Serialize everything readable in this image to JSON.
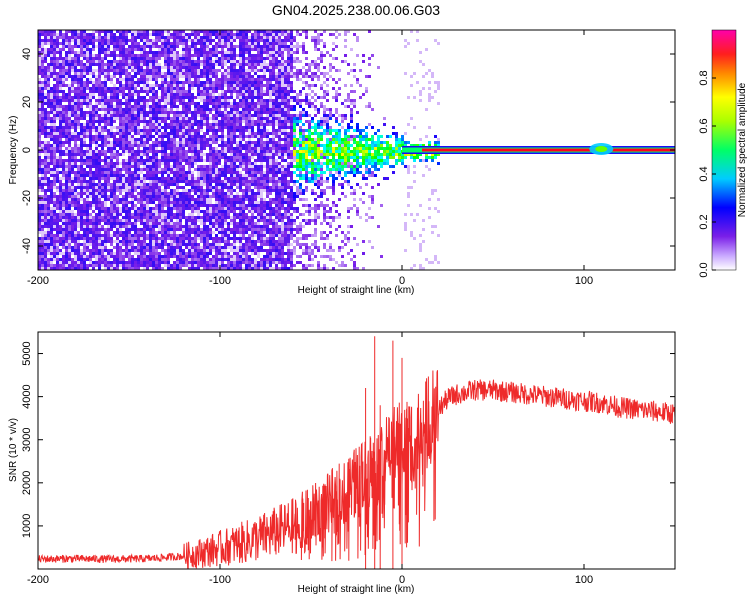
{
  "title": "GN04.2025.238.00.06.G03",
  "colors": {
    "snr_line": "#ee2a2a",
    "low_amp": "#7a1fe8",
    "ridge": "#ff1e1e"
  },
  "chart_data": [
    {
      "type": "heatmap",
      "name": "spectrogram",
      "xlabel": "Height of straight line (km)",
      "ylabel": "Frequency (Hz)",
      "xlim": [
        -200,
        150
      ],
      "ylim": [
        -50,
        50
      ],
      "xticks": [
        "-200",
        "-100",
        "0",
        "100"
      ],
      "xtick_values": [
        -200,
        -100,
        0,
        100
      ],
      "yticks": [
        "-40",
        "-20",
        "0",
        "20",
        "40"
      ],
      "ytick_values": [
        -40,
        -20,
        0,
        20,
        40
      ],
      "colorbar": {
        "label": "Normalized spectral amplitude",
        "range": [
          0,
          1
        ],
        "ticks": [
          "0.0",
          "0.2",
          "0.4",
          "0.6",
          "0.8"
        ],
        "tick_values": [
          0.0,
          0.2,
          0.4,
          0.6,
          0.8
        ],
        "colormap": [
          "#ffffff",
          "#7a1fe8",
          "#0000ff",
          "#00ffff",
          "#00ff00",
          "#ffff00",
          "#ff8800",
          "#ff0000",
          "#ff00aa"
        ]
      },
      "description_points": {
        "noise_region_x": [
          -200,
          -60
        ],
        "transition_x": [
          -60,
          20
        ],
        "ridge_frequency": 0,
        "ridge_start_x": 0,
        "ridge_end_x": 150,
        "bright_blob_x": [
          110,
          120
        ]
      }
    },
    {
      "type": "line",
      "name": "snr",
      "xlabel": "Height of straight line (km)",
      "ylabel": "SNR (10 * v/v)",
      "xlim": [
        -200,
        150
      ],
      "ylim": [
        0,
        5500
      ],
      "xticks": [
        "-200",
        "-100",
        "0",
        "100"
      ],
      "xtick_values": [
        -200,
        -100,
        0,
        100
      ],
      "yticks": [
        "1000",
        "2000",
        "3000",
        "4000",
        "5000"
      ],
      "ytick_values": [
        1000,
        2000,
        3000,
        4000,
        5000
      ],
      "envelope": {
        "x": [
          -200,
          -180,
          -160,
          -140,
          -120,
          -110,
          -100,
          -90,
          -80,
          -70,
          -60,
          -50,
          -40,
          -30,
          -20,
          -15,
          -10,
          -5,
          0,
          5,
          10,
          15,
          20,
          25,
          30,
          40,
          50,
          60,
          70,
          80,
          90,
          100,
          110,
          120,
          130,
          140,
          150
        ],
        "y": [
          230,
          240,
          230,
          240,
          300,
          380,
          480,
          580,
          700,
          850,
          1000,
          1200,
          1500,
          1800,
          2200,
          2400,
          2600,
          2800,
          2900,
          3000,
          3200,
          3400,
          3700,
          3950,
          4050,
          4150,
          4150,
          4100,
          4050,
          4000,
          3950,
          3900,
          3850,
          3750,
          3700,
          3650,
          3600
        ]
      },
      "spikes": {
        "x": [
          -20,
          -15,
          -12,
          -5,
          0
        ],
        "y": [
          4200,
          5400,
          3800,
          5300,
          4900
        ]
      }
    }
  ]
}
